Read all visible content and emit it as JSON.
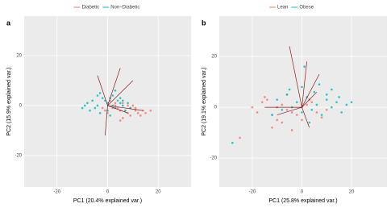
{
  "chart_data": [
    {
      "type": "scatter",
      "title": "a",
      "x_label": "PC1 (20.4% explained var.)",
      "y_label": "PC2 (15.9% explained var.)",
      "xlim": [
        -33,
        33
      ],
      "ylim": [
        -32.6,
        35.8
      ],
      "xticks": [
        -20,
        0,
        20
      ],
      "yticks": [
        -20,
        0,
        20
      ],
      "grid": true,
      "series": [
        {
          "name": "Diabetic",
          "color": "#f8766d",
          "x": [
            2,
            5,
            8,
            11,
            14,
            3,
            6,
            9,
            12,
            1,
            4,
            7,
            10,
            13,
            -2,
            0,
            6,
            9,
            15,
            17,
            3,
            8,
            11,
            5,
            -1
          ],
          "y": [
            -1,
            -2,
            -3,
            -1,
            -2,
            0,
            1,
            -4,
            -3,
            2,
            -1,
            -2,
            0,
            -4,
            -1,
            -3,
            -5,
            -1,
            -3,
            -2,
            1,
            0,
            -2,
            -6,
            -2
          ]
        },
        {
          "name": "Non−Diabetic",
          "color": "#00bfc4",
          "x": [
            -8,
            -6,
            -4,
            -2,
            0,
            2,
            4,
            6,
            8,
            -7,
            -5,
            -3,
            -1,
            1,
            3,
            5,
            7,
            -9,
            -3,
            0,
            2,
            5,
            9,
            -4,
            1,
            6,
            -10,
            3
          ],
          "y": [
            1,
            2,
            0,
            3,
            1,
            4,
            2,
            0,
            1,
            -2,
            -1,
            -3,
            2,
            3,
            -1,
            1,
            -2,
            0,
            5,
            -2,
            0,
            3,
            -1,
            4,
            -4,
            2,
            -1,
            6
          ]
        }
      ],
      "arrows": {
        "x": [
          5,
          -4,
          10,
          14,
          -1,
          8
        ],
        "y": [
          15,
          12,
          10,
          -2,
          -12,
          -3
        ]
      }
    },
    {
      "type": "scatter",
      "title": "b",
      "x_label": "PC1 (25.8% explained var.)",
      "y_label": "PC2 (19.1% explained var.)",
      "xlim": [
        -33.3,
        34.3
      ],
      "ylim": [
        -31.4,
        35.9
      ],
      "xticks": [
        -20,
        0,
        20
      ],
      "yticks": [
        -20,
        0,
        20
      ],
      "grid": true,
      "series": [
        {
          "name": "Lean",
          "color": "#f8766d",
          "x": [
            -20,
            -16,
            -12,
            -8,
            -4,
            0,
            4,
            8,
            -18,
            -14,
            -10,
            -6,
            -2,
            2,
            6,
            -12,
            -8,
            -4,
            0,
            -15,
            -6,
            3,
            -25,
            -10,
            10
          ],
          "y": [
            0,
            2,
            -3,
            1,
            -2,
            0,
            2,
            -4,
            -2,
            3,
            -5,
            -1,
            -3,
            1,
            -2,
            -8,
            -6,
            -9,
            -5,
            4,
            5,
            3,
            -12,
            0,
            -1
          ]
        },
        {
          "name": "Obese",
          "color": "#00bfc4",
          "x": [
            -10,
            -6,
            -2,
            2,
            6,
            10,
            14,
            18,
            -8,
            -4,
            0,
            4,
            8,
            12,
            16,
            -5,
            0,
            5,
            10,
            15,
            20,
            3,
            7,
            -12,
            12,
            1,
            -28
          ],
          "y": [
            3,
            5,
            2,
            4,
            1,
            3,
            2,
            1,
            -1,
            0,
            -2,
            -1,
            -3,
            0,
            -2,
            7,
            8,
            6,
            5,
            4,
            2,
            -6,
            9,
            -3,
            7,
            16,
            -14
          ]
        }
      ],
      "arrows": {
        "x": [
          -5,
          2,
          7,
          -15,
          -10,
          3,
          6
        ],
        "y": [
          24,
          18,
          13,
          0,
          -3,
          -8,
          6
        ]
      }
    }
  ]
}
